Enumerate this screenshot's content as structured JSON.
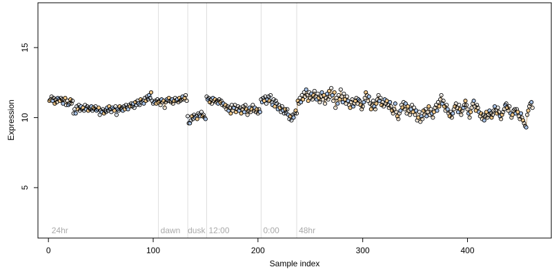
{
  "chart_data": {
    "type": "scatter",
    "title": "",
    "xlabel": "Sample index",
    "ylabel": "Expression",
    "xlim": [
      -10,
      480
    ],
    "ylim": [
      1.4,
      18.2
    ],
    "xticks": [
      0,
      100,
      200,
      300,
      400
    ],
    "yticks": [
      5,
      10,
      15
    ],
    "grid": false,
    "legend": "none",
    "colors": {
      "points_dark": "#000000",
      "points_blue": "#a9c4e8",
      "points_orange": "#f3c98a",
      "segment_line_gray": "#999999",
      "segment_line_blue": "#b9d0ec",
      "segment_line_orange": "#f2c88d",
      "vline": "#dddddd",
      "annotation": "#a9a9a9"
    },
    "vlines": [
      105,
      133,
      151,
      203,
      237
    ],
    "annotations": [
      {
        "text": "24hr",
        "x": 3
      },
      {
        "text": "dawn",
        "x": 107
      },
      {
        "text": "dusk",
        "x": 133
      },
      {
        "text": "12:00",
        "x": 153
      },
      {
        "text": "0:00",
        "x": 205
      },
      {
        "text": "48hr",
        "x": 239
      }
    ],
    "segments": [
      {
        "x": [
          1,
          2,
          3,
          4,
          5,
          6,
          7,
          8,
          9,
          10,
          11,
          12,
          13,
          14,
          15,
          16,
          17,
          18,
          19,
          20,
          21,
          22,
          23
        ],
        "y": [
          11.2,
          11.3,
          11.5,
          11.2,
          11.4,
          11.0,
          11.3,
          11.1,
          11.4,
          11.3,
          11.2,
          11.4,
          11.3,
          11.0,
          11.3,
          11.4,
          10.9,
          11.2,
          10.9,
          11.0,
          11.3,
          11.0,
          11.2
        ]
      },
      {
        "x": [
          24,
          25,
          26,
          27,
          28,
          29,
          30,
          31,
          32,
          33,
          34,
          35,
          36,
          37,
          38,
          39,
          40,
          41,
          42,
          43,
          44,
          45,
          46,
          47,
          48,
          49,
          50,
          51,
          52,
          53,
          54,
          55,
          56,
          57,
          58,
          59,
          60,
          61,
          62,
          63,
          64,
          65,
          66,
          67,
          68,
          69,
          70,
          71,
          72,
          73,
          74,
          75,
          76,
          77,
          78,
          79,
          80,
          81,
          82,
          83,
          84,
          85,
          86,
          87,
          88,
          89,
          90,
          91,
          92,
          93,
          94,
          95,
          96,
          97,
          98,
          99,
          100,
          101,
          102,
          103,
          104
        ],
        "y": [
          10.3,
          10.6,
          10.3,
          10.8,
          10.6,
          10.9,
          10.5,
          10.8,
          10.6,
          10.7,
          10.5,
          10.9,
          10.6,
          10.8,
          10.5,
          10.7,
          10.6,
          10.8,
          10.5,
          10.7,
          10.6,
          10.8,
          10.5,
          10.6,
          10.7,
          10.2,
          10.5,
          10.4,
          10.6,
          10.3,
          10.5,
          10.4,
          10.7,
          10.5,
          10.8,
          10.6,
          10.4,
          10.7,
          10.6,
          10.5,
          10.8,
          10.2,
          10.6,
          10.5,
          10.8,
          10.6,
          10.7,
          10.5,
          10.8,
          10.6,
          10.9,
          10.7,
          10.6,
          10.9,
          10.8,
          11.0,
          10.8,
          11.0,
          10.7,
          11.1,
          10.9,
          11.2,
          11.0,
          10.9,
          11.3,
          11.1,
          11.2,
          11.0,
          11.4,
          11.2,
          11.5,
          11.3,
          11.6,
          11.4,
          11.8,
          11.2,
          11.0,
          11.1,
          11.2,
          11.0,
          11.3
        ]
      },
      {
        "x": [
          105,
          106,
          107,
          108,
          109,
          110,
          111,
          112,
          113,
          114,
          115,
          116,
          117,
          118,
          119,
          120,
          121,
          122,
          123,
          124,
          125,
          126,
          127,
          128,
          129,
          130,
          131,
          132
        ],
        "y": [
          11.1,
          11.2,
          10.9,
          11.3,
          11.1,
          11.2,
          10.7,
          11.1,
          11.3,
          11.2,
          11.4,
          11.2,
          11.1,
          11.3,
          11.0,
          11.2,
          11.4,
          11.2,
          11.3,
          11.1,
          11.4,
          11.2,
          11.3,
          11.5,
          11.3,
          11.4,
          11.6,
          11.2
        ]
      },
      {
        "x": [
          133,
          134,
          135,
          136,
          137,
          138,
          139,
          140,
          141,
          142,
          143,
          144,
          145,
          146,
          147,
          148,
          149,
          150
        ],
        "y": [
          10.1,
          9.6,
          9.6,
          9.8,
          10.1,
          9.9,
          10.2,
          10.0,
          10.1,
          9.9,
          10.3,
          10.2,
          10.1,
          10.4,
          10.1,
          10.2,
          10.0,
          9.9
        ]
      },
      {
        "x": [
          151,
          152,
          153,
          154,
          155,
          156,
          157,
          158,
          159,
          160,
          161,
          162,
          163,
          164,
          165,
          166,
          167,
          168,
          169,
          170,
          171,
          172,
          173,
          174,
          175,
          176,
          177,
          178,
          179,
          180,
          181,
          182,
          183,
          184,
          185,
          186,
          187,
          188,
          189,
          190,
          191,
          192,
          193,
          194,
          195,
          196,
          197,
          198,
          199,
          200,
          201,
          202
        ],
        "y": [
          11.5,
          11.3,
          11.4,
          11.1,
          11.3,
          11.0,
          11.4,
          11.2,
          11.3,
          11.1,
          11.2,
          11.0,
          11.3,
          11.1,
          11.2,
          10.9,
          11.0,
          10.8,
          10.9,
          10.6,
          10.8,
          10.5,
          10.7,
          10.3,
          10.9,
          10.5,
          10.7,
          10.9,
          10.4,
          10.6,
          10.8,
          10.5,
          10.7,
          10.3,
          10.6,
          10.8,
          10.4,
          10.9,
          10.6,
          10.2,
          10.5,
          10.7,
          10.4,
          10.6,
          10.9,
          10.5,
          10.7,
          10.4,
          10.6,
          10.3,
          10.6,
          10.4
        ]
      },
      {
        "x": [
          203,
          204,
          205,
          206,
          207,
          208,
          209,
          210,
          211,
          212,
          213,
          214,
          215,
          216,
          217,
          218,
          219,
          220,
          221,
          222,
          223,
          224,
          225,
          226,
          227,
          228,
          229,
          230,
          231,
          232,
          233,
          234,
          235,
          236
        ],
        "y": [
          11.3,
          11.1,
          11.4,
          11.2,
          11.5,
          11.0,
          11.3,
          11.5,
          11.2,
          11.6,
          11.1,
          10.9,
          11.3,
          10.8,
          11.2,
          11.0,
          10.6,
          10.9,
          10.7,
          10.4,
          10.8,
          10.5,
          10.3,
          10.6,
          10.3,
          10.6,
          10.2,
          9.9,
          10.1,
          9.8,
          10.2,
          10.0,
          10.3,
          10.5
        ]
      },
      {
        "x": [
          237,
          238,
          239,
          240,
          241,
          242,
          243,
          244,
          245,
          246,
          247,
          248,
          249,
          250,
          251,
          252,
          253,
          254,
          255,
          256,
          257,
          258,
          259,
          260,
          261,
          262,
          263,
          264,
          265,
          266,
          267,
          268,
          269,
          270,
          271,
          272,
          273,
          274,
          275,
          276,
          277,
          278,
          279,
          280,
          281,
          282,
          283,
          284,
          285,
          286,
          287,
          288,
          289,
          290,
          291,
          292,
          293,
          294,
          295,
          296,
          297,
          298,
          299,
          300,
          301,
          302,
          303,
          304,
          305,
          306,
          307,
          308,
          309,
          310,
          311,
          312,
          313,
          314,
          315,
          316,
          317,
          318,
          319,
          320,
          321,
          322,
          323,
          324,
          325,
          326,
          327,
          328,
          329,
          330,
          331,
          332,
          333,
          334,
          335,
          336,
          337,
          338,
          339,
          340,
          341,
          342,
          343,
          344,
          345,
          346,
          347,
          348,
          349,
          350,
          351,
          352,
          353,
          354,
          355,
          356,
          357,
          358,
          359,
          360,
          361,
          362,
          363,
          364,
          365,
          366,
          367,
          368,
          369,
          370,
          371,
          372,
          373,
          374,
          375,
          376,
          377,
          378,
          379,
          380,
          381,
          382,
          383,
          384,
          385,
          386,
          387,
          388,
          389,
          390,
          391,
          392,
          393,
          394,
          395,
          396,
          397,
          398,
          399,
          400,
          401,
          402,
          403,
          404,
          405,
          406,
          407,
          408,
          409,
          410,
          411,
          412,
          413,
          414,
          415,
          416,
          417,
          418,
          419,
          420,
          421,
          422,
          423,
          424,
          425,
          426,
          427,
          428,
          429,
          430,
          431,
          432,
          433,
          434,
          435,
          436,
          437,
          438,
          439,
          440,
          441,
          442,
          443,
          444,
          445,
          446,
          447,
          448,
          449,
          450,
          451,
          452,
          453,
          454,
          455,
          456,
          457,
          458,
          459,
          460,
          461,
          462
        ],
        "y": [
          10.3,
          11.2,
          11.0,
          11.4,
          11.1,
          11.6,
          11.3,
          11.8,
          11.5,
          12.0,
          11.6,
          11.2,
          11.8,
          11.4,
          11.7,
          11.3,
          11.6,
          11.9,
          11.5,
          11.3,
          11.7,
          11.4,
          11.1,
          11.5,
          11.8,
          11.3,
          11.6,
          11.0,
          11.4,
          11.7,
          11.3,
          11.9,
          11.5,
          12.1,
          11.6,
          11.2,
          11.8,
          10.7,
          11.4,
          11.0,
          11.6,
          11.3,
          12.0,
          11.5,
          11.1,
          11.7,
          11.3,
          11.0,
          11.5,
          11.2,
          10.9,
          10.7,
          11.1,
          11.3,
          10.8,
          11.0,
          11.2,
          11.4,
          11.0,
          11.3,
          11.2,
          10.9,
          10.6,
          10.8,
          11.1,
          11.4,
          11.8,
          11.6,
          11.2,
          11.5,
          11.0,
          10.6,
          10.9,
          11.2,
          10.8,
          10.6,
          11.0,
          11.3,
          11.6,
          11.2,
          11.4,
          10.9,
          11.1,
          10.8,
          11.3,
          11.0,
          11.2,
          10.9,
          10.7,
          11.1,
          10.8,
          10.5,
          10.3,
          10.6,
          11.0,
          10.4,
          10.1,
          9.9,
          10.3,
          10.5,
          10.9,
          10.7,
          11.1,
          10.6,
          11.0,
          10.3,
          10.8,
          10.5,
          10.2,
          10.6,
          10.9,
          10.4,
          10.7,
          10.2,
          10.5,
          9.8,
          10.0,
          10.4,
          9.7,
          10.1,
          9.9,
          10.5,
          10.2,
          10.6,
          10.1,
          10.4,
          10.8,
          10.2,
          10.6,
          10.3,
          10.0,
          10.4,
          10.7,
          10.9,
          10.5,
          11.1,
          10.8,
          11.3,
          11.6,
          11.0,
          11.2,
          10.8,
          10.5,
          10.9,
          10.6,
          10.3,
          10.1,
          10.4,
          10.0,
          10.3,
          10.6,
          10.8,
          11.0,
          10.7,
          10.4,
          10.9,
          10.6,
          10.2,
          10.5,
          10.7,
          10.9,
          11.2,
          10.9,
          10.6,
          10.3,
          10.0,
          10.4,
          10.7,
          11.0,
          11.2,
          10.8,
          10.5,
          10.9,
          10.7,
          10.4,
          10.1,
          10.3,
          9.9,
          10.2,
          9.8,
          10.1,
          10.4,
          10.0,
          10.2,
          10.5,
          10.3,
          10.0,
          10.2,
          10.5,
          10.8,
          10.5,
          10.3,
          10.7,
          10.4,
          10.1,
          9.9,
          10.2,
          10.4,
          10.6,
          10.9,
          11.0,
          10.7,
          10.5,
          10.8,
          10.3,
          10.0,
          10.2,
          10.5,
          10.6,
          10.3,
          10.6,
          10.4,
          10.1,
          9.9,
          10.3,
          10.0,
          9.8,
          9.6,
          9.4,
          9.3,
          10.2,
          10.5,
          10.8,
          11.0,
          11.1,
          10.7
        ]
      }
    ]
  },
  "axes": {
    "xtick_labels": [
      "0",
      "100",
      "200",
      "300",
      "400"
    ],
    "ytick_labels": [
      "5",
      "10",
      "15"
    ],
    "xlabel": "Sample index",
    "ylabel": "Expression"
  }
}
